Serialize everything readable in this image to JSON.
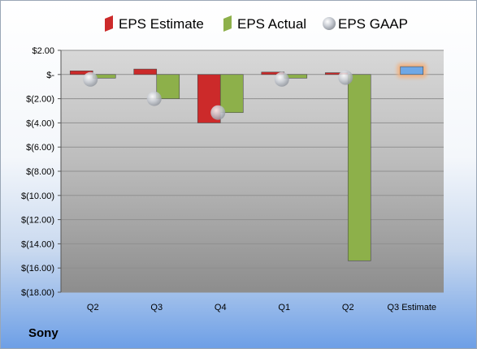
{
  "company": "Sony",
  "chart_data": {
    "type": "bar",
    "categories": [
      "Q2",
      "Q3",
      "Q4",
      "Q1",
      "Q2",
      "Q3 Estimate"
    ],
    "series": [
      {
        "name": "EPS Estimate",
        "kind": "bar",
        "color": "#cc2a2a",
        "values": [
          0.3,
          0.45,
          -4.0,
          0.2,
          0.15,
          null
        ]
      },
      {
        "name": "EPS Actual",
        "kind": "bar",
        "color": "#8db04a",
        "values": [
          -0.3,
          -2.0,
          -3.15,
          -0.3,
          -15.4,
          null
        ]
      },
      {
        "name": "EPS GAAP",
        "kind": "marker",
        "color": "#b8bcc4",
        "values": [
          -0.4,
          -2.0,
          -3.15,
          -0.4,
          -0.25,
          null
        ]
      },
      {
        "name": "",
        "kind": "bar",
        "color": "#6fa8e6",
        "highlight": "#f4b07a",
        "values": [
          null,
          null,
          null,
          null,
          null,
          0.65
        ]
      }
    ],
    "legend": [
      "EPS Estimate",
      "EPS Actual",
      "EPS GAAP"
    ],
    "legend_position": "top",
    "ylim": [
      -18,
      2
    ],
    "yticks": [
      2,
      0,
      -2,
      -4,
      -6,
      -8,
      -10,
      -12,
      -14,
      -16,
      -18
    ],
    "ytick_labels": [
      "$2.00",
      "$-",
      "$(2.00)",
      "$(4.00)",
      "$(6.00)",
      "$(8.00)",
      "$(10.00)",
      "$(12.00)",
      "$(14.00)",
      "$(16.00)",
      "$(18.00)"
    ],
    "grid": true
  }
}
